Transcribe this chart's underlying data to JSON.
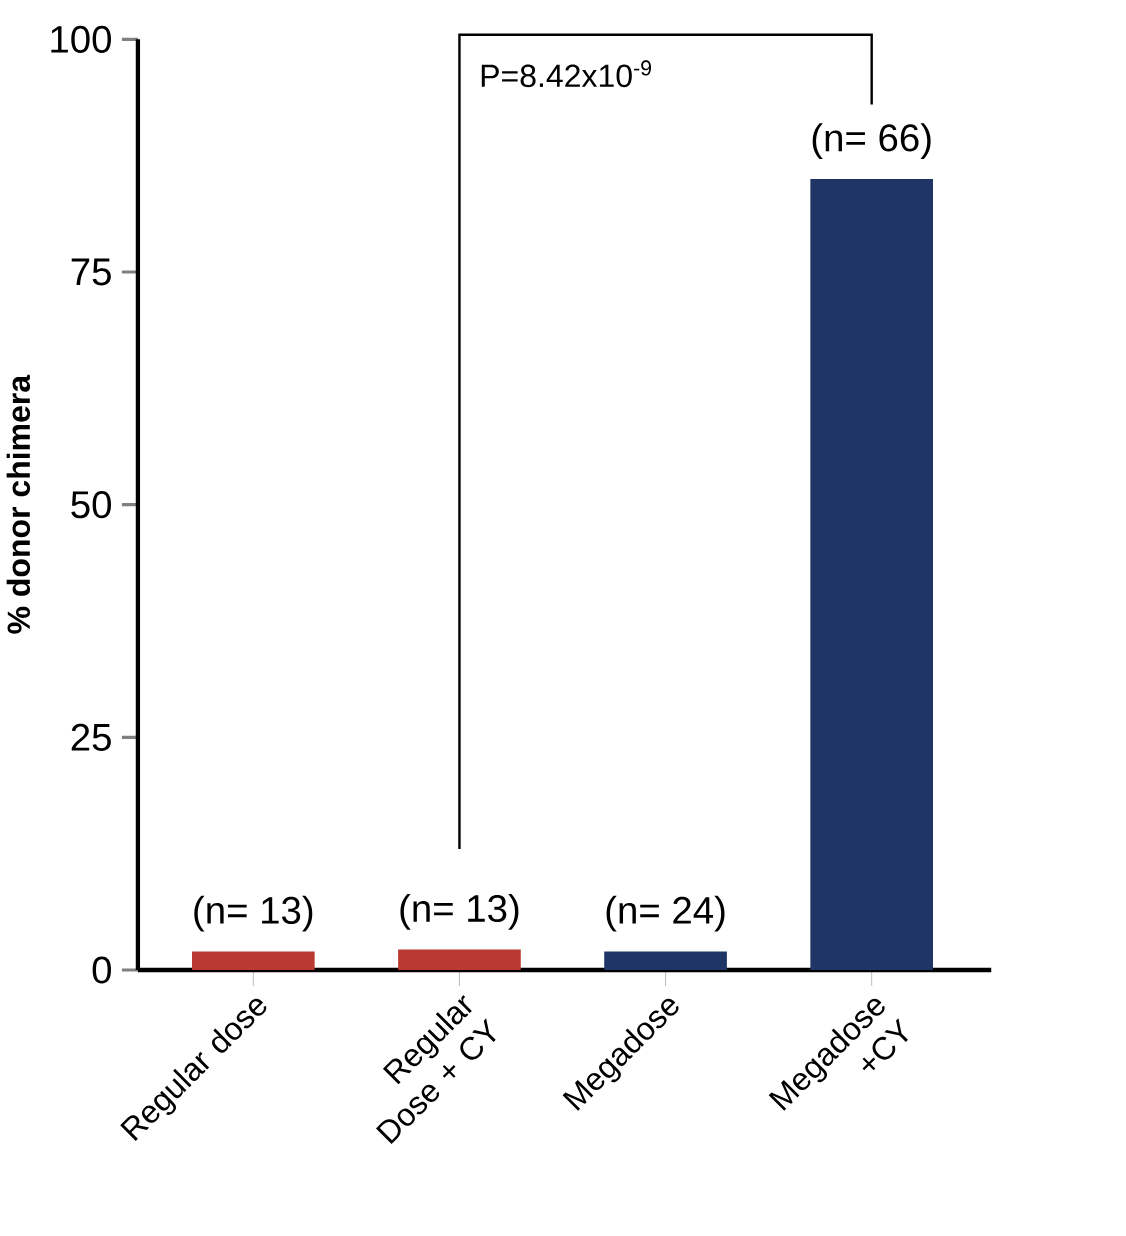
{
  "chart_data": {
    "type": "bar",
    "ylabel": "% donor chimera",
    "categories": [
      "Regular dose",
      "Regular Dose + CY",
      "Megadose",
      "Megadose +CY"
    ],
    "values": [
      2,
      2.2,
      2,
      85
    ],
    "colors": [
      "#b83a32",
      "#b83a32",
      "#1e3566",
      "#1e3566"
    ],
    "ylim": [
      0,
      100
    ],
    "yticks": [
      0,
      25,
      50,
      75,
      100
    ],
    "annotations": [
      {
        "text": "(n= 13)",
        "x": "Regular dose",
        "y": 2
      },
      {
        "text": "(n= 13)",
        "x": "Regular Dose + CY",
        "y": 2.2
      },
      {
        "text": "(n= 24)",
        "x": "Megadose",
        "y": 2
      },
      {
        "text": "(n= 66)",
        "x": "Megadose +CY",
        "y": 85
      },
      "P=8.42x10$^{-9}$"
    ]
  }
}
